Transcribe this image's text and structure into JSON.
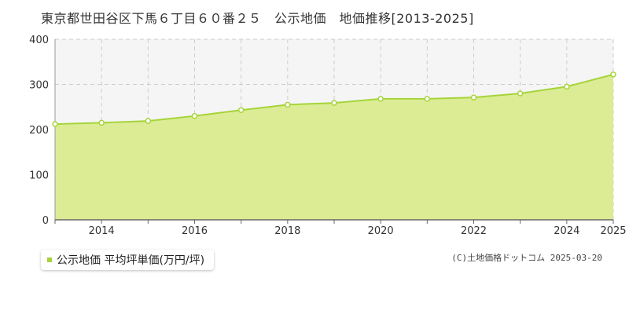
{
  "title": "東京都世田谷区下馬６丁目６０番２５　公示地価　地価推移[2013-2025]",
  "legend_label": "公示地価 平均坪単価(万円/坪)",
  "copyright": "(C)土地価格ドットコム 2025-03-20",
  "colors": {
    "area_fill": "#dcec95",
    "line": "#a6d43a",
    "band": "#f5f5f5",
    "grid": "#cccccc",
    "axis": "#999999"
  },
  "chart_data": {
    "type": "area",
    "x": [
      2013,
      2014,
      2015,
      2016,
      2017,
      2018,
      2019,
      2020,
      2021,
      2022,
      2023,
      2024,
      2025
    ],
    "series": [
      {
        "name": "公示地価 平均坪単価(万円/坪)",
        "values": [
          212,
          215,
          219,
          230,
          243,
          255,
          259,
          268,
          268,
          271,
          280,
          295,
          322
        ]
      }
    ],
    "xticks": [
      2014,
      2016,
      2018,
      2020,
      2022,
      2024,
      2025
    ],
    "yticks": [
      0,
      100,
      200,
      300,
      400
    ],
    "ylim": [
      0,
      400
    ],
    "xlim": [
      2013,
      2025
    ],
    "grid": true,
    "legend_position": "bottom-left"
  }
}
